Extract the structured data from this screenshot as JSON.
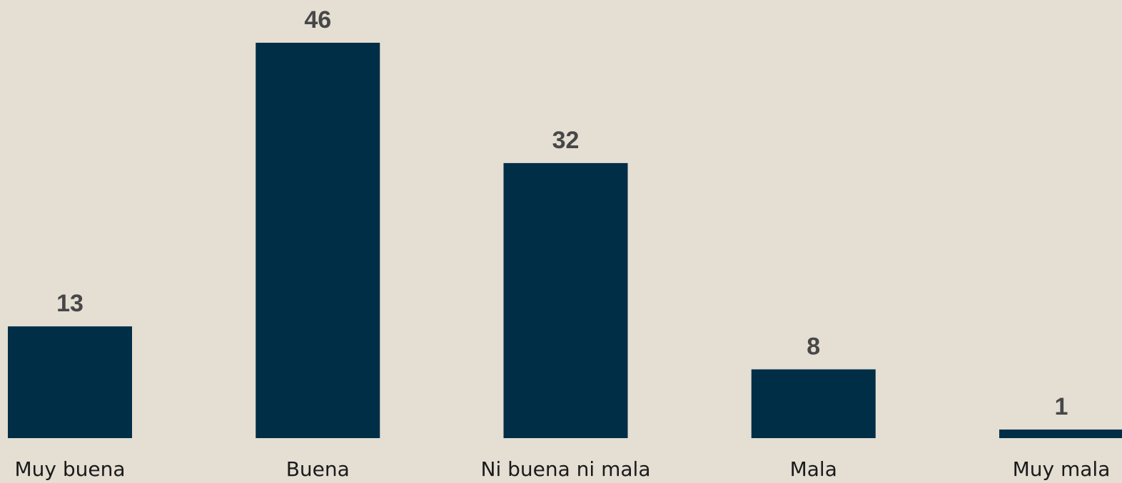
{
  "chart_data": {
    "type": "bar",
    "categories": [
      "Muy buena",
      "Buena",
      "Ni buena ni mala",
      "Mala",
      "Muy mala"
    ],
    "values": [
      13,
      46,
      32,
      8,
      1
    ],
    "color": "#002e47"
  }
}
